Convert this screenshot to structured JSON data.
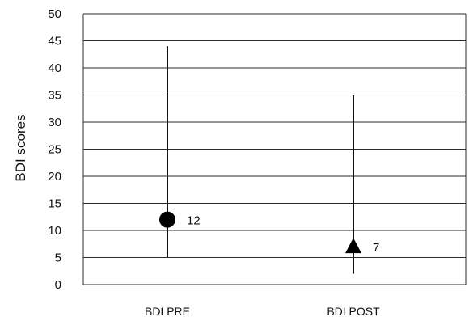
{
  "chart_data": {
    "type": "scatter",
    "ylabel": "BDI scores",
    "ylim": [
      0,
      50
    ],
    "yticks": [
      0,
      5,
      10,
      15,
      20,
      25,
      30,
      35,
      40,
      45,
      50
    ],
    "grid": true,
    "categories": [
      "BDI PRE",
      "BDI POST"
    ],
    "points": [
      {
        "category": "BDI PRE",
        "value": 12,
        "low": 5,
        "high": 44,
        "marker": "circle",
        "label": "12"
      },
      {
        "category": "BDI POST",
        "value": 7,
        "low": 2,
        "high": 35,
        "marker": "triangle",
        "label": "7"
      }
    ]
  }
}
